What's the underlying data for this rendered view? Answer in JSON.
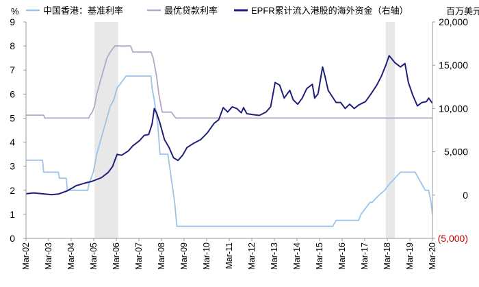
{
  "chart_data": {
    "type": "line",
    "left_axis": {
      "unit": "%",
      "range": [
        0,
        9
      ],
      "ticks": [
        "0",
        "1",
        "2",
        "3",
        "4",
        "5",
        "6",
        "7",
        "8",
        "9"
      ]
    },
    "right_axis": {
      "unit": "百万美元",
      "range": [
        -5000,
        20000
      ],
      "ticks": [
        {
          "label": "(5,000)",
          "value": -5000,
          "color": "#c00000"
        },
        {
          "label": "0",
          "value": 0,
          "color": "#000000"
        },
        {
          "label": "5,000",
          "value": 5000,
          "color": "#000000"
        },
        {
          "label": "10,000",
          "value": 10000,
          "color": "#000000"
        },
        {
          "label": "15,000",
          "value": 15000,
          "color": "#000000"
        },
        {
          "label": "20,000",
          "value": 20000,
          "color": "#000000"
        }
      ]
    },
    "x_axis": {
      "range": [
        2002.167,
        2020.167
      ],
      "ticks": [
        {
          "label": "Mar-02",
          "value": 2002.167
        },
        {
          "label": "Mar-03",
          "value": 2003.167
        },
        {
          "label": "Mar-04",
          "value": 2004.167
        },
        {
          "label": "Mar-05",
          "value": 2005.167
        },
        {
          "label": "Mar-06",
          "value": 2006.167
        },
        {
          "label": "Mar-07",
          "value": 2007.167
        },
        {
          "label": "Mar-08",
          "value": 2008.167
        },
        {
          "label": "Mar-09",
          "value": 2009.167
        },
        {
          "label": "Mar-10",
          "value": 2010.167
        },
        {
          "label": "Mar-11",
          "value": 2011.167
        },
        {
          "label": "Mar-12",
          "value": 2012.167
        },
        {
          "label": "Mar-13",
          "value": 2013.167
        },
        {
          "label": "Mar-14",
          "value": 2014.167
        },
        {
          "label": "Mar-15",
          "value": 2015.167
        },
        {
          "label": "Mar-16",
          "value": 2016.167
        },
        {
          "label": "Mar-17",
          "value": 2017.167
        },
        {
          "label": "Mar-18",
          "value": 2018.167
        },
        {
          "label": "Mar-19",
          "value": 2019.167
        },
        {
          "label": "Mar-20",
          "value": 2020.167
        }
      ]
    },
    "shaded_periods": [
      [
        2005.2,
        2006.25
      ],
      [
        2018.1,
        2018.5
      ]
    ],
    "series": [
      {
        "name": "中国香港：基准利率",
        "axis": "left",
        "color": "#9dc3e6",
        "points": [
          [
            2002.167,
            3.25
          ],
          [
            2002.9,
            3.25
          ],
          [
            2002.95,
            2.75
          ],
          [
            2003.6,
            2.75
          ],
          [
            2003.65,
            2.5
          ],
          [
            2003.95,
            2.5
          ],
          [
            2004.0,
            2.0
          ],
          [
            2004.9,
            2.0
          ],
          [
            2004.95,
            2.25
          ],
          [
            2005.05,
            2.5
          ],
          [
            2005.15,
            2.75
          ],
          [
            2005.3,
            3.5
          ],
          [
            2005.45,
            4.0
          ],
          [
            2005.6,
            4.5
          ],
          [
            2005.75,
            5.0
          ],
          [
            2005.9,
            5.5
          ],
          [
            2006.05,
            5.75
          ],
          [
            2006.2,
            6.25
          ],
          [
            2006.4,
            6.5
          ],
          [
            2006.6,
            6.75
          ],
          [
            2007.0,
            6.75
          ],
          [
            2007.7,
            6.75
          ],
          [
            2007.75,
            6.25
          ],
          [
            2007.85,
            5.75
          ],
          [
            2008.0,
            4.75
          ],
          [
            2008.1,
            3.5
          ],
          [
            2008.45,
            3.5
          ],
          [
            2008.6,
            2.5
          ],
          [
            2008.75,
            1.5
          ],
          [
            2008.85,
            0.5
          ],
          [
            2009.0,
            0.5
          ],
          [
            2015.75,
            0.5
          ],
          [
            2015.9,
            0.75
          ],
          [
            2016.9,
            0.75
          ],
          [
            2017.0,
            1.0
          ],
          [
            2017.2,
            1.25
          ],
          [
            2017.4,
            1.5
          ],
          [
            2017.5,
            1.5
          ],
          [
            2017.75,
            1.75
          ],
          [
            2018.05,
            2.0
          ],
          [
            2018.25,
            2.25
          ],
          [
            2018.5,
            2.5
          ],
          [
            2018.75,
            2.75
          ],
          [
            2019.4,
            2.75
          ],
          [
            2019.55,
            2.5
          ],
          [
            2019.7,
            2.25
          ],
          [
            2019.85,
            2.0
          ],
          [
            2020.0,
            2.0
          ],
          [
            2020.1,
            1.5
          ],
          [
            2020.167,
            1.0
          ]
        ]
      },
      {
        "name": "最优贷款利率",
        "axis": "left",
        "color": "#b4a7c8",
        "points": [
          [
            2002.167,
            5.125
          ],
          [
            2002.95,
            5.125
          ],
          [
            2003.0,
            5.0
          ],
          [
            2004.95,
            5.0
          ],
          [
            2005.0,
            5.125
          ],
          [
            2005.1,
            5.25
          ],
          [
            2005.2,
            5.5
          ],
          [
            2005.3,
            6.0
          ],
          [
            2005.45,
            6.5
          ],
          [
            2005.6,
            7.0
          ],
          [
            2005.75,
            7.5
          ],
          [
            2005.9,
            7.75
          ],
          [
            2006.1,
            8.0
          ],
          [
            2006.8,
            8.0
          ],
          [
            2006.9,
            7.75
          ],
          [
            2007.7,
            7.75
          ],
          [
            2007.8,
            7.5
          ],
          [
            2007.95,
            6.75
          ],
          [
            2008.05,
            6.0
          ],
          [
            2008.2,
            5.25
          ],
          [
            2008.6,
            5.25
          ],
          [
            2008.8,
            5.0
          ],
          [
            2020.167,
            5.0
          ]
        ]
      },
      {
        "name": "EPFR累计流入港股的海外资金（右轴）",
        "axis": "right",
        "color": "#1f1f7a",
        "points": [
          [
            2002.167,
            150
          ],
          [
            2002.5,
            250
          ],
          [
            2003.0,
            120
          ],
          [
            2003.3,
            50
          ],
          [
            2003.6,
            120
          ],
          [
            2004.0,
            500
          ],
          [
            2004.4,
            1100
          ],
          [
            2004.8,
            1400
          ],
          [
            2005.1,
            1600
          ],
          [
            2005.5,
            2000
          ],
          [
            2005.8,
            2600
          ],
          [
            2006.0,
            3300
          ],
          [
            2006.2,
            4700
          ],
          [
            2006.4,
            4600
          ],
          [
            2006.7,
            5100
          ],
          [
            2006.9,
            5700
          ],
          [
            2007.2,
            6300
          ],
          [
            2007.4,
            6900
          ],
          [
            2007.6,
            7000
          ],
          [
            2007.75,
            8200
          ],
          [
            2007.85,
            10000
          ],
          [
            2007.95,
            9500
          ],
          [
            2008.1,
            8300
          ],
          [
            2008.3,
            6400
          ],
          [
            2008.5,
            5500
          ],
          [
            2008.7,
            4300
          ],
          [
            2008.9,
            4000
          ],
          [
            2009.1,
            4600
          ],
          [
            2009.3,
            5500
          ],
          [
            2009.6,
            6000
          ],
          [
            2009.9,
            6400
          ],
          [
            2010.2,
            7200
          ],
          [
            2010.5,
            8300
          ],
          [
            2010.7,
            8700
          ],
          [
            2010.9,
            10100
          ],
          [
            2011.1,
            9600
          ],
          [
            2011.3,
            10200
          ],
          [
            2011.5,
            10000
          ],
          [
            2011.7,
            9500
          ],
          [
            2011.8,
            10100
          ],
          [
            2011.95,
            9400
          ],
          [
            2012.2,
            9300
          ],
          [
            2012.5,
            9200
          ],
          [
            2012.8,
            9600
          ],
          [
            2013.0,
            10200
          ],
          [
            2013.2,
            13000
          ],
          [
            2013.4,
            12700
          ],
          [
            2013.6,
            11200
          ],
          [
            2013.85,
            12100
          ],
          [
            2014.0,
            11000
          ],
          [
            2014.2,
            10500
          ],
          [
            2014.4,
            11200
          ],
          [
            2014.6,
            12300
          ],
          [
            2014.85,
            12800
          ],
          [
            2014.95,
            11200
          ],
          [
            2015.1,
            11700
          ],
          [
            2015.3,
            14800
          ],
          [
            2015.4,
            13800
          ],
          [
            2015.55,
            12100
          ],
          [
            2015.75,
            11300
          ],
          [
            2015.9,
            10700
          ],
          [
            2016.1,
            10700
          ],
          [
            2016.3,
            10000
          ],
          [
            2016.5,
            10500
          ],
          [
            2016.7,
            10000
          ],
          [
            2016.9,
            10400
          ],
          [
            2017.2,
            10800
          ],
          [
            2017.45,
            11700
          ],
          [
            2017.7,
            12700
          ],
          [
            2017.9,
            13700
          ],
          [
            2018.1,
            15000
          ],
          [
            2018.25,
            16100
          ],
          [
            2018.5,
            15300
          ],
          [
            2018.75,
            14800
          ],
          [
            2018.95,
            15200
          ],
          [
            2019.1,
            13000
          ],
          [
            2019.3,
            11500
          ],
          [
            2019.5,
            10300
          ],
          [
            2019.7,
            10700
          ],
          [
            2019.9,
            10800
          ],
          [
            2020.0,
            11200
          ],
          [
            2020.167,
            10600
          ]
        ]
      }
    ]
  }
}
